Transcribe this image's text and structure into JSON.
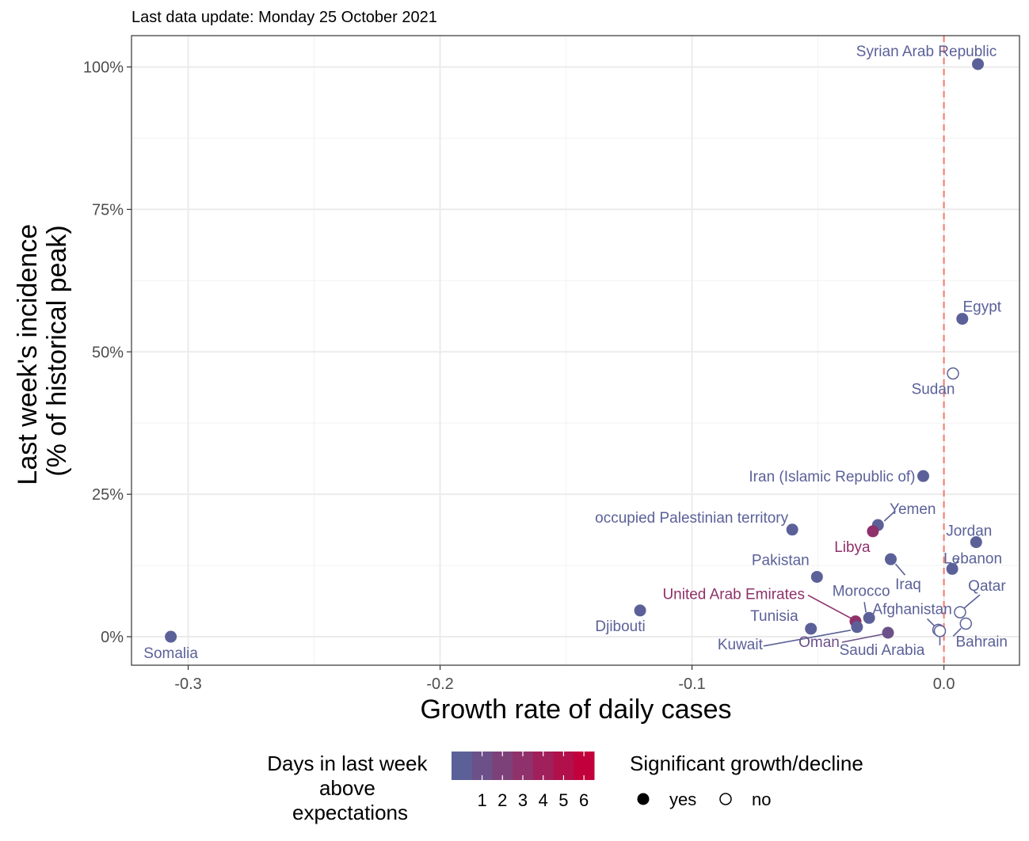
{
  "chart_data": {
    "type": "scatter",
    "subtitle": "Last data update: Monday 25 October 2021",
    "xlabel": "Growth rate of daily cases",
    "ylabel_lines": [
      "Last week's incidence",
      "(% of historical peak)"
    ],
    "xlim": [
      -0.3225,
      0.03
    ],
    "ylim": [
      -5,
      105.5
    ],
    "x_ticks": [
      {
        "value": -0.3,
        "label": "-0.3"
      },
      {
        "value": -0.2,
        "label": "-0.2"
      },
      {
        "value": -0.1,
        "label": "-0.1"
      },
      {
        "value": 0.0,
        "label": "0.0"
      }
    ],
    "y_ticks": [
      {
        "value": 0,
        "label": "0%"
      },
      {
        "value": 25,
        "label": "25%"
      },
      {
        "value": 50,
        "label": "50%"
      },
      {
        "value": 75,
        "label": "75%"
      },
      {
        "value": 100,
        "label": "100%"
      }
    ],
    "grid": true,
    "reference_line": {
      "x": 0,
      "color": "#f8766d",
      "style": "dashed"
    },
    "color_scale": {
      "title_lines": [
        "Days in last week",
        "above",
        "expectations"
      ],
      "low_color": "#5b6198",
      "high_color": "#c2003c",
      "breaks": [
        "1",
        "2",
        "3",
        "4",
        "5",
        "6"
      ]
    },
    "shape_legend": {
      "title": "Significant growth/decline",
      "items": [
        {
          "label": "yes",
          "filled": true
        },
        {
          "label": "no",
          "filled": false
        }
      ]
    },
    "points": [
      {
        "name": "Syrian Arab Republic",
        "x": 0.0135,
        "y": 100.5,
        "days": 0,
        "significant": true
      },
      {
        "name": "Egypt",
        "x": 0.0073,
        "y": 55.8,
        "days": 0,
        "significant": true
      },
      {
        "name": "Sudan",
        "x": 0.0036,
        "y": 46.2,
        "days": 0,
        "significant": false
      },
      {
        "name": "Iran (Islamic Republic of)",
        "x": -0.0082,
        "y": 28.2,
        "days": 0,
        "significant": true
      },
      {
        "name": "Yemen",
        "x": -0.0262,
        "y": 19.6,
        "days": 0,
        "significant": true
      },
      {
        "name": "Libya",
        "x": -0.0282,
        "y": 18.5,
        "days": 3,
        "significant": true
      },
      {
        "name": "occupied Palestinian territory",
        "x": -0.0602,
        "y": 18.8,
        "days": 0,
        "significant": true
      },
      {
        "name": "Jordan",
        "x": 0.0128,
        "y": 16.6,
        "days": 0,
        "significant": true
      },
      {
        "name": "Iraq",
        "x": -0.0211,
        "y": 13.6,
        "days": 0,
        "significant": true
      },
      {
        "name": "Lebanon",
        "x": 0.0033,
        "y": 11.9,
        "days": 0,
        "significant": true
      },
      {
        "name": "Pakistan",
        "x": -0.0504,
        "y": 10.5,
        "days": 0,
        "significant": true
      },
      {
        "name": "Djibouti",
        "x": -0.1206,
        "y": 4.6,
        "days": 0,
        "significant": true
      },
      {
        "name": "Qatar",
        "x": 0.0064,
        "y": 4.3,
        "days": 0,
        "significant": false
      },
      {
        "name": "Morocco",
        "x": -0.0297,
        "y": 3.3,
        "days": 0,
        "significant": true
      },
      {
        "name": "United Arab Emirates",
        "x": -0.0351,
        "y": 2.7,
        "days": 3,
        "significant": true
      },
      {
        "name": "Bahrain",
        "x": 0.0087,
        "y": 2.3,
        "days": 0,
        "significant": false
      },
      {
        "name": "Tunisia",
        "x": -0.0528,
        "y": 1.4,
        "days": 0,
        "significant": true
      },
      {
        "name": "Kuwait",
        "x": -0.0345,
        "y": 1.7,
        "days": 0,
        "significant": true
      },
      {
        "name": "Afghanistan",
        "x": -0.0022,
        "y": 1.2,
        "days": 0,
        "significant": false
      },
      {
        "name": "Saudi Arabia",
        "x": -0.0016,
        "y": 1.0,
        "days": 0,
        "significant": false
      },
      {
        "name": "Oman",
        "x": -0.0222,
        "y": 0.7,
        "days": 1,
        "significant": true
      },
      {
        "name": "Somalia",
        "x": -0.3069,
        "y": 0.0,
        "days": 0,
        "significant": true
      }
    ]
  }
}
